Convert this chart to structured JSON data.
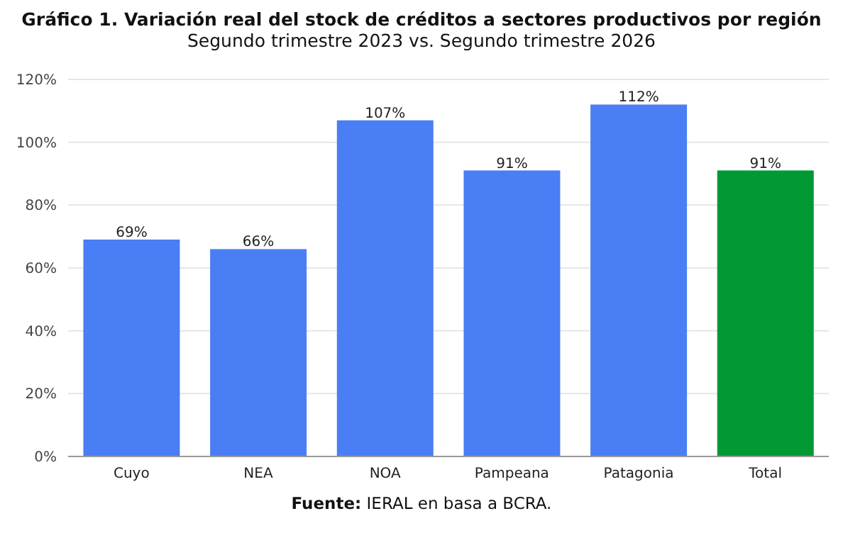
{
  "chart_data": {
    "type": "bar",
    "title": "Gráfico 1.  Variación real del stock de créditos a sectores productivos por región",
    "subtitle": "Segundo trimestre 2023 vs. Segundo trimestre 2026",
    "categories": [
      "Cuyo",
      "NEA",
      "NOA",
      "Pampeana",
      "Patagonia",
      "Total"
    ],
    "values": [
      69,
      66,
      107,
      91,
      112,
      91
    ],
    "colors": [
      "#4a7ef5",
      "#4a7ef5",
      "#4a7ef5",
      "#4a7ef5",
      "#4a7ef5",
      "#009933"
    ],
    "value_labels": [
      "69%",
      "66%",
      "107%",
      "91%",
      "112%",
      "91%"
    ],
    "ylim": [
      0,
      120
    ],
    "yticks": [
      {
        "value": 0,
        "label": "0%"
      },
      {
        "value": 20,
        "label": "20%"
      },
      {
        "value": 40,
        "label": "40%"
      },
      {
        "value": 60,
        "label": "60%"
      },
      {
        "value": 80,
        "label": "80%"
      },
      {
        "value": 100,
        "label": "100%"
      },
      {
        "value": 120,
        "label": "120%"
      }
    ],
    "grid": "y",
    "legend": false,
    "annotations": [
      "Fuente:  IERAL en basa a BCRA."
    ]
  }
}
